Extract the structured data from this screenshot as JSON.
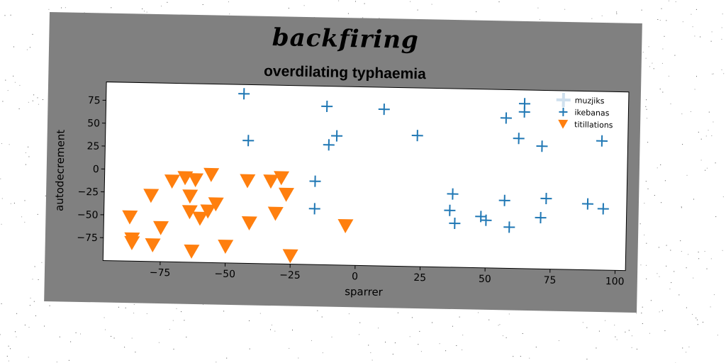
{
  "figure": {
    "suptitle": "backfiring",
    "title": "overdilating typhaemia",
    "background": "#808080"
  },
  "chart_data": {
    "type": "scatter",
    "title": "overdilating typhaemia",
    "xlabel": "sparrer",
    "ylabel": "autodecrement",
    "xlim": [
      -97,
      104
    ],
    "ylim": [
      -100,
      95
    ],
    "xticks": [
      -75,
      -50,
      -25,
      0,
      25,
      50,
      75,
      100
    ],
    "yticks": [
      75,
      50,
      25,
      0,
      -25,
      -50,
      -75
    ],
    "grid": false,
    "legend_position": "top-right",
    "series": [
      {
        "name": "muzjiks",
        "marker": "plus-large",
        "color": "#cfe0ee",
        "x": [],
        "y": []
      },
      {
        "name": "ikebanas",
        "marker": "plus",
        "color": "#1f77b4",
        "x": [
          -44,
          -42,
          -12,
          -11,
          -8,
          10,
          23,
          57,
          62,
          64,
          64,
          71,
          94,
          -16,
          -16,
          37,
          36,
          38,
          48,
          50,
          57,
          59,
          71,
          73,
          89,
          95
        ],
        "y": [
          85,
          34,
          73,
          31,
          41,
          71,
          43,
          64,
          42,
          80,
          71,
          34,
          41,
          -9,
          -39,
          -20,
          -38,
          -52,
          -44,
          -48,
          -26,
          -55,
          -44,
          -23,
          -28,
          -33
        ]
      },
      {
        "name": "titillations",
        "marker": "triangle-down",
        "color": "#ff7f0e",
        "x": [
          -87,
          -86,
          -86,
          -79,
          -78,
          -75,
          -71,
          -66,
          -64,
          -62,
          -64,
          -63,
          -60,
          -57,
          -56,
          -54,
          -50,
          -42,
          -41,
          -33,
          -31,
          -29,
          -27,
          -25,
          -4
        ],
        "y": [
          -52,
          -76,
          -80,
          -28,
          -82,
          -63,
          -12,
          -8,
          -28,
          -10,
          -45,
          -88,
          -52,
          -44,
          -4,
          -36,
          -82,
          -10,
          -56,
          -10,
          -45,
          -6,
          -24,
          -91,
          -57
        ]
      }
    ]
  }
}
